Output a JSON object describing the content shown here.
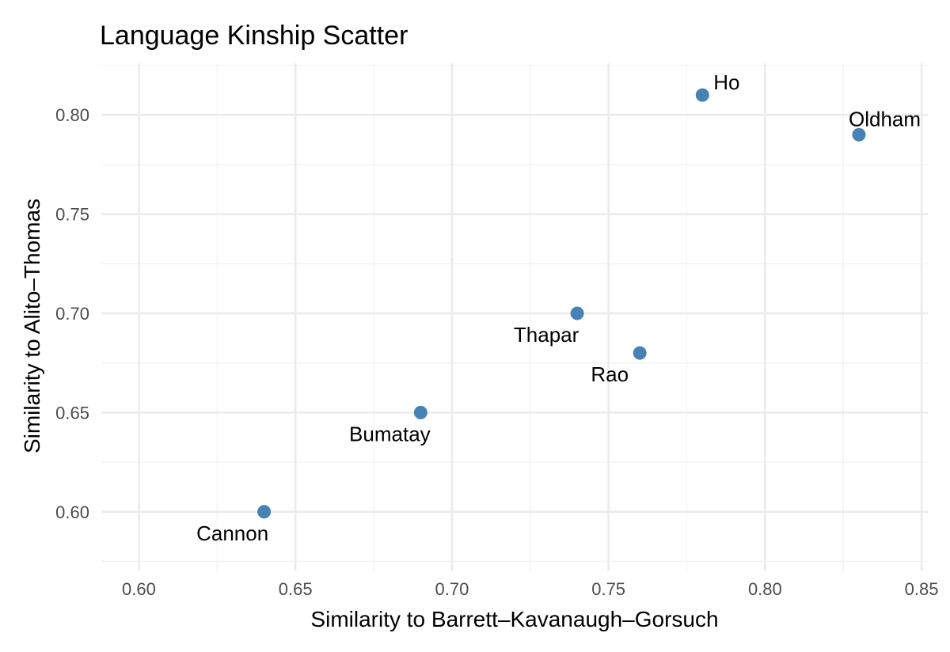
{
  "chart_data": {
    "type": "scatter",
    "title": "Language Kinship Scatter",
    "xlabel": "Similarity to Barrett–Kavanaugh–Gorsuch",
    "ylabel": "Similarity to Alito–Thomas",
    "xlim": [
      0.588,
      0.852
    ],
    "ylim": [
      0.57,
      0.826
    ],
    "x_ticks": [
      0.6,
      0.65,
      0.7,
      0.75,
      0.8,
      0.85
    ],
    "x_tick_labels": [
      "0.60",
      "0.65",
      "0.70",
      "0.75",
      "0.80",
      "0.85"
    ],
    "y_ticks": [
      0.6,
      0.65,
      0.7,
      0.75,
      0.8
    ],
    "y_tick_labels": [
      "0.60",
      "0.65",
      "0.70",
      "0.75",
      "0.80"
    ],
    "grid": true,
    "legend": "none",
    "point_color": "#4682b4",
    "points": [
      {
        "label": "Cannon",
        "x": 0.64,
        "y": 0.6
      },
      {
        "label": "Bumatay",
        "x": 0.69,
        "y": 0.65
      },
      {
        "label": "Thapar",
        "x": 0.74,
        "y": 0.7
      },
      {
        "label": "Rao",
        "x": 0.76,
        "y": 0.68
      },
      {
        "label": "Ho",
        "x": 0.78,
        "y": 0.81
      },
      {
        "label": "Oldham",
        "x": 0.83,
        "y": 0.79
      }
    ]
  }
}
